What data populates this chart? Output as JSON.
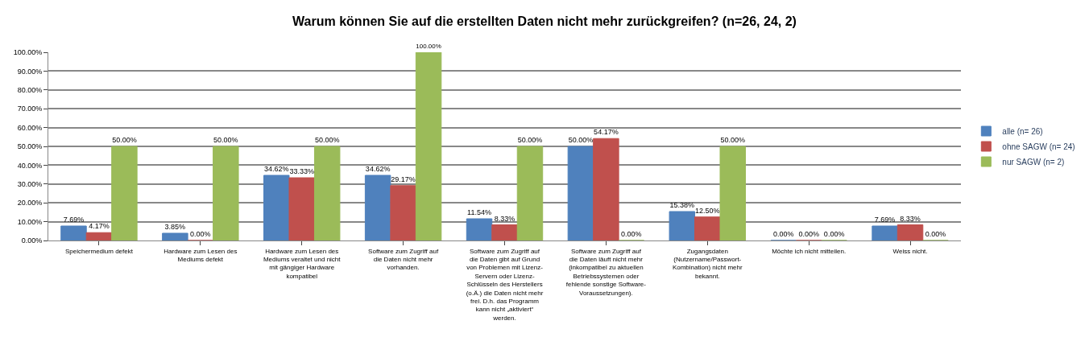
{
  "chart_data": {
    "type": "bar",
    "title": "Warum können Sie auf die erstellten Daten nicht mehr zurückgreifen? (n=26, 24, 2)",
    "categories": [
      "Speichermedium defekt",
      "Hardware zum Lesen des Mediums defekt",
      "Hardware zum Lesen des Mediums veraltet und nicht mit gängiger Hardware kompatibel",
      "Software zum Zugriff auf die Daten nicht mehr vorhanden.",
      "Software zum Zugriff auf die Daten gibt auf Grund von Problemen mit Lizenz-Servern oder Lizenz-Schlüsseln des Herstellers (o.Ä.) die Daten nicht mehr frei. D.h. das Programm kann nicht „aktiviert“ werden.",
      "Software zum Zugriff auf die Daten läuft nicht mehr (inkompatibel zu aktuellen Betriebssystemen oder fehlende sonstige Software-Voraussetzungen).",
      "Zugangsdaten (Nutzername/Passwort-Kombination) nicht mehr bekannt.",
      "Möchte ich nicht mitteilen.",
      "Weiss nicht."
    ],
    "series": [
      {
        "name": "alle (n= 26)",
        "color": "#4f81bd",
        "values": [
          7.69,
          3.85,
          34.62,
          34.62,
          11.54,
          50.0,
          15.38,
          0.0,
          7.69
        ],
        "value_labels": [
          "7.69%",
          "3.85%",
          "34.62%",
          "34.62%",
          "11.54%",
          "50.00%",
          "15.38%",
          "0.00%",
          "7.69%"
        ]
      },
      {
        "name": "ohne SAGW (n= 24)",
        "color": "#c0504d",
        "values": [
          4.17,
          0.0,
          33.33,
          29.17,
          8.33,
          54.17,
          12.5,
          0.0,
          8.33
        ],
        "value_labels": [
          "4.17%",
          "0.00%",
          "33.33%",
          "29.17%",
          "8.33%",
          "54.17%",
          "12.50%",
          "0.00%",
          "8.33%"
        ]
      },
      {
        "name": "nur SAGW (n= 2)",
        "color": "#9bbb59",
        "values": [
          50.0,
          50.0,
          50.0,
          100.0,
          50.0,
          0.0,
          50.0,
          0.0,
          0.0
        ],
        "value_labels": [
          "50.00%",
          "50.00%",
          "50.00%",
          "100.00%",
          "50.00%",
          "0.00%",
          "50.00%",
          "0.00%",
          "0.00%"
        ]
      }
    ],
    "ylim": [
      0,
      100
    ],
    "yticks": [
      {
        "value": 0,
        "label": "0.00%"
      },
      {
        "value": 10,
        "label": "10.00%"
      },
      {
        "value": 20,
        "label": "20.00%"
      },
      {
        "value": 30,
        "label": "30.00%"
      },
      {
        "value": 40,
        "label": "40.00%"
      },
      {
        "value": 50,
        "label": "50.00%"
      },
      {
        "value": 60,
        "label": "60.00%"
      },
      {
        "value": 70,
        "label": "70.00%"
      },
      {
        "value": 80,
        "label": "80.00%"
      },
      {
        "value": 90,
        "label": "90.00%"
      },
      {
        "value": 100,
        "label": "100.00%"
      }
    ],
    "grid": "y",
    "legend": "right"
  }
}
